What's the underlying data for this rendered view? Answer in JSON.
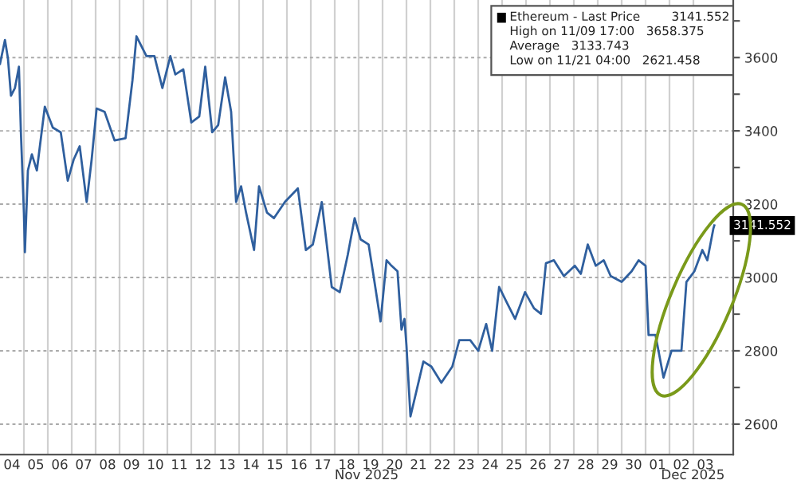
{
  "chart_data": {
    "type": "line",
    "x": [
      "2025-11-04T00:00",
      "2025-11-04T05:00",
      "2025-11-04T08:00",
      "2025-11-04T11:00",
      "2025-11-04T15:00",
      "2025-11-04T19:00",
      "2025-11-04T21:00",
      "2025-11-05T00:00",
      "2025-11-05T01:00",
      "2025-11-05T04:00",
      "2025-11-05T08:00",
      "2025-11-05T13:00",
      "2025-11-05T21:00",
      "2025-11-06T05:00",
      "2025-11-06T13:00",
      "2025-11-06T20:00",
      "2025-11-07T02:00",
      "2025-11-07T08:00",
      "2025-11-07T15:00",
      "2025-11-07T20:00",
      "2025-11-08T01:00",
      "2025-11-08T09:00",
      "2025-11-08T19:00",
      "2025-11-09T06:00",
      "2025-11-09T13:00",
      "2025-11-09T17:00",
      "2025-11-10T03:00",
      "2025-11-10T11:00",
      "2025-11-10T19:00",
      "2025-11-11T03:00",
      "2025-11-11T08:00",
      "2025-11-11T16:00",
      "2025-11-12T00:00",
      "2025-11-12T08:00",
      "2025-11-12T14:00",
      "2025-11-12T21:00",
      "2025-11-13T03:00",
      "2025-11-13T10:00",
      "2025-11-13T16:00",
      "2025-11-13T21:00",
      "2025-11-14T02:00",
      "2025-11-14T07:00",
      "2025-11-14T15:00",
      "2025-11-14T20:00",
      "2025-11-15T04:00",
      "2025-11-15T11:00",
      "2025-11-15T22:00",
      "2025-11-16T11:00",
      "2025-11-16T19:00",
      "2025-11-17T02:00",
      "2025-11-17T11:00",
      "2025-11-17T21:00",
      "2025-11-18T05:00",
      "2025-11-18T13:00",
      "2025-11-18T20:00",
      "2025-11-19T02:00",
      "2025-11-19T10:00",
      "2025-11-19T15:00",
      "2025-11-19T22:00",
      "2025-11-20T04:00",
      "2025-11-20T09:00",
      "2025-11-20T15:00",
      "2025-11-20T19:00",
      "2025-11-20T22:00",
      "2025-11-21T00:00",
      "2025-11-21T04:00",
      "2025-11-21T17:00",
      "2025-11-22T01:00",
      "2025-11-22T11:00",
      "2025-11-22T22:00",
      "2025-11-23T05:00",
      "2025-11-23T16:00",
      "2025-11-24T00:00",
      "2025-11-24T08:00",
      "2025-11-24T14:00",
      "2025-11-24T21:00",
      "2025-11-25T05:00",
      "2025-11-25T13:00",
      "2025-11-25T23:00",
      "2025-11-26T08:00",
      "2025-11-26T15:00",
      "2025-11-26T20:00",
      "2025-11-27T04:00",
      "2025-11-27T14:00",
      "2025-11-28T01:00",
      "2025-11-28T07:00",
      "2025-11-28T14:00",
      "2025-11-28T22:00",
      "2025-11-29T06:00",
      "2025-11-29T13:00",
      "2025-11-30T00:00",
      "2025-11-30T10:00",
      "2025-11-30T17:00",
      "2025-12-01T00:00",
      "2025-12-01T03:00",
      "2025-12-01T10:00",
      "2025-12-01T18:00",
      "2025-12-02T02:00",
      "2025-12-02T12:00",
      "2025-12-02T17:00",
      "2025-12-03T01:00",
      "2025-12-03T09:00",
      "2025-12-03T14:00",
      "2025-12-03T20:00",
      "2025-12-03T21:00"
    ],
    "series": [
      {
        "name": "Ethereum - Last Price",
        "color": "#2f5f9e",
        "values": [
          3583,
          3648,
          3597,
          3496,
          3517,
          3575,
          3395,
          3177,
          3069,
          3292,
          3336,
          3292,
          3466,
          3409,
          3396,
          3264,
          3322,
          3358,
          3206,
          3322,
          3461,
          3452,
          3374,
          3380,
          3539,
          3658,
          3604,
          3604,
          3517,
          3604,
          3554,
          3568,
          3423,
          3439,
          3575,
          3396,
          3416,
          3546,
          3452,
          3206,
          3249,
          3177,
          3075,
          3249,
          3177,
          3162,
          3206,
          3243,
          3075,
          3090,
          3206,
          2974,
          2960,
          3061,
          3162,
          3104,
          3090,
          3004,
          2880,
          3047,
          3032,
          3017,
          2858,
          2887,
          2814,
          2621,
          2771,
          2757,
          2713,
          2757,
          2829,
          2829,
          2800,
          2873,
          2800,
          2974,
          2930,
          2887,
          2960,
          2916,
          2901,
          3039,
          3047,
          3004,
          3032,
          3010,
          3090,
          3032,
          3047,
          3004,
          2988,
          3017,
          3047,
          3032,
          2843,
          2843,
          2727,
          2800,
          2800,
          2988,
          3017,
          3075,
          3047,
          3133,
          3142
        ]
      }
    ],
    "xlim": [
      "2025-11-04T00:00",
      "2025-12-04T16:00"
    ],
    "xticks": [
      {
        "value": "2025-11-04T12:00",
        "label": "04"
      },
      {
        "value": "2025-11-05T12:00",
        "label": "05"
      },
      {
        "value": "2025-11-06T12:00",
        "label": "06"
      },
      {
        "value": "2025-11-07T12:00",
        "label": "07"
      },
      {
        "value": "2025-11-08T12:00",
        "label": "08"
      },
      {
        "value": "2025-11-09T12:00",
        "label": "09"
      },
      {
        "value": "2025-11-10T12:00",
        "label": "10"
      },
      {
        "value": "2025-11-11T12:00",
        "label": "11"
      },
      {
        "value": "2025-11-12T12:00",
        "label": "12"
      },
      {
        "value": "2025-11-13T12:00",
        "label": "13"
      },
      {
        "value": "2025-11-14T12:00",
        "label": "14"
      },
      {
        "value": "2025-11-15T12:00",
        "label": "15"
      },
      {
        "value": "2025-11-16T12:00",
        "label": "16"
      },
      {
        "value": "2025-11-17T12:00",
        "label": "17"
      },
      {
        "value": "2025-11-18T12:00",
        "label": "18"
      },
      {
        "value": "2025-11-19T12:00",
        "label": "19"
      },
      {
        "value": "2025-11-20T12:00",
        "label": "20"
      },
      {
        "value": "2025-11-21T12:00",
        "label": "21"
      },
      {
        "value": "2025-11-22T12:00",
        "label": "22"
      },
      {
        "value": "2025-11-23T12:00",
        "label": "23"
      },
      {
        "value": "2025-11-24T12:00",
        "label": "24"
      },
      {
        "value": "2025-11-25T12:00",
        "label": "25"
      },
      {
        "value": "2025-11-26T12:00",
        "label": "26"
      },
      {
        "value": "2025-11-27T12:00",
        "label": "27"
      },
      {
        "value": "2025-11-28T12:00",
        "label": "28"
      },
      {
        "value": "2025-11-29T12:00",
        "label": "29"
      },
      {
        "value": "2025-11-30T12:00",
        "label": "30"
      },
      {
        "value": "2025-12-01T12:00",
        "label": "01"
      },
      {
        "value": "2025-12-02T12:00",
        "label": "02"
      },
      {
        "value": "2025-12-03T12:00",
        "label": "03"
      },
      {
        "value": "2025-11-05T00:00",
        "label": null
      },
      {
        "value": "2025-11-06T00:00",
        "label": null
      },
      {
        "value": "2025-11-07T00:00",
        "label": null
      },
      {
        "value": "2025-11-08T00:00",
        "label": null
      },
      {
        "value": "2025-11-09T00:00",
        "label": null
      },
      {
        "value": "2025-11-10T00:00",
        "label": null
      },
      {
        "value": "2025-11-11T00:00",
        "label": null
      },
      {
        "value": "2025-11-12T00:00",
        "label": null
      },
      {
        "value": "2025-11-13T00:00",
        "label": null
      },
      {
        "value": "2025-11-14T00:00",
        "label": null
      },
      {
        "value": "2025-11-15T00:00",
        "label": null
      },
      {
        "value": "2025-11-16T00:00",
        "label": null
      },
      {
        "value": "2025-11-17T00:00",
        "label": null
      },
      {
        "value": "2025-11-18T00:00",
        "label": null
      },
      {
        "value": "2025-11-19T00:00",
        "label": null
      },
      {
        "value": "2025-11-20T00:00",
        "label": null
      },
      {
        "value": "2025-11-21T00:00",
        "label": null
      },
      {
        "value": "2025-11-22T00:00",
        "label": null
      },
      {
        "value": "2025-11-23T00:00",
        "label": null
      },
      {
        "value": "2025-11-24T00:00",
        "label": null
      },
      {
        "value": "2025-11-25T00:00",
        "label": null
      },
      {
        "value": "2025-11-26T00:00",
        "label": null
      },
      {
        "value": "2025-11-27T00:00",
        "label": null
      },
      {
        "value": "2025-11-28T00:00",
        "label": null
      },
      {
        "value": "2025-11-29T00:00",
        "label": null
      },
      {
        "value": "2025-11-30T00:00",
        "label": null
      },
      {
        "value": "2025-12-01T00:00",
        "label": null
      },
      {
        "value": "2025-12-02T00:00",
        "label": null
      },
      {
        "value": "2025-12-03T00:00",
        "label": null
      }
    ],
    "ylim": [
      2517,
      3757
    ],
    "yticks": [
      2600,
      {
        "value": 2700,
        "label": null
      },
      2800,
      {
        "value": 2900,
        "label": null
      },
      3000,
      {
        "value": 3100,
        "label": null
      },
      3200,
      {
        "value": 3300,
        "label": null
      },
      3400,
      {
        "value": 3500,
        "label": null
      },
      3600,
      {
        "value": 3700,
        "label": null
      }
    ],
    "grid": true,
    "line_style": "solid",
    "annotations": [
      {
        "text": "3141.552",
        "x": "2025-12-03T21:00",
        "y": 3141.552
      },
      "3141.552",
      "High on 11/09 17:00   3658.375",
      "Average   3133.743",
      "Low on 11/21 04:00   2621.458",
      "Nov 2025",
      "Dec 2025"
    ]
  }
}
